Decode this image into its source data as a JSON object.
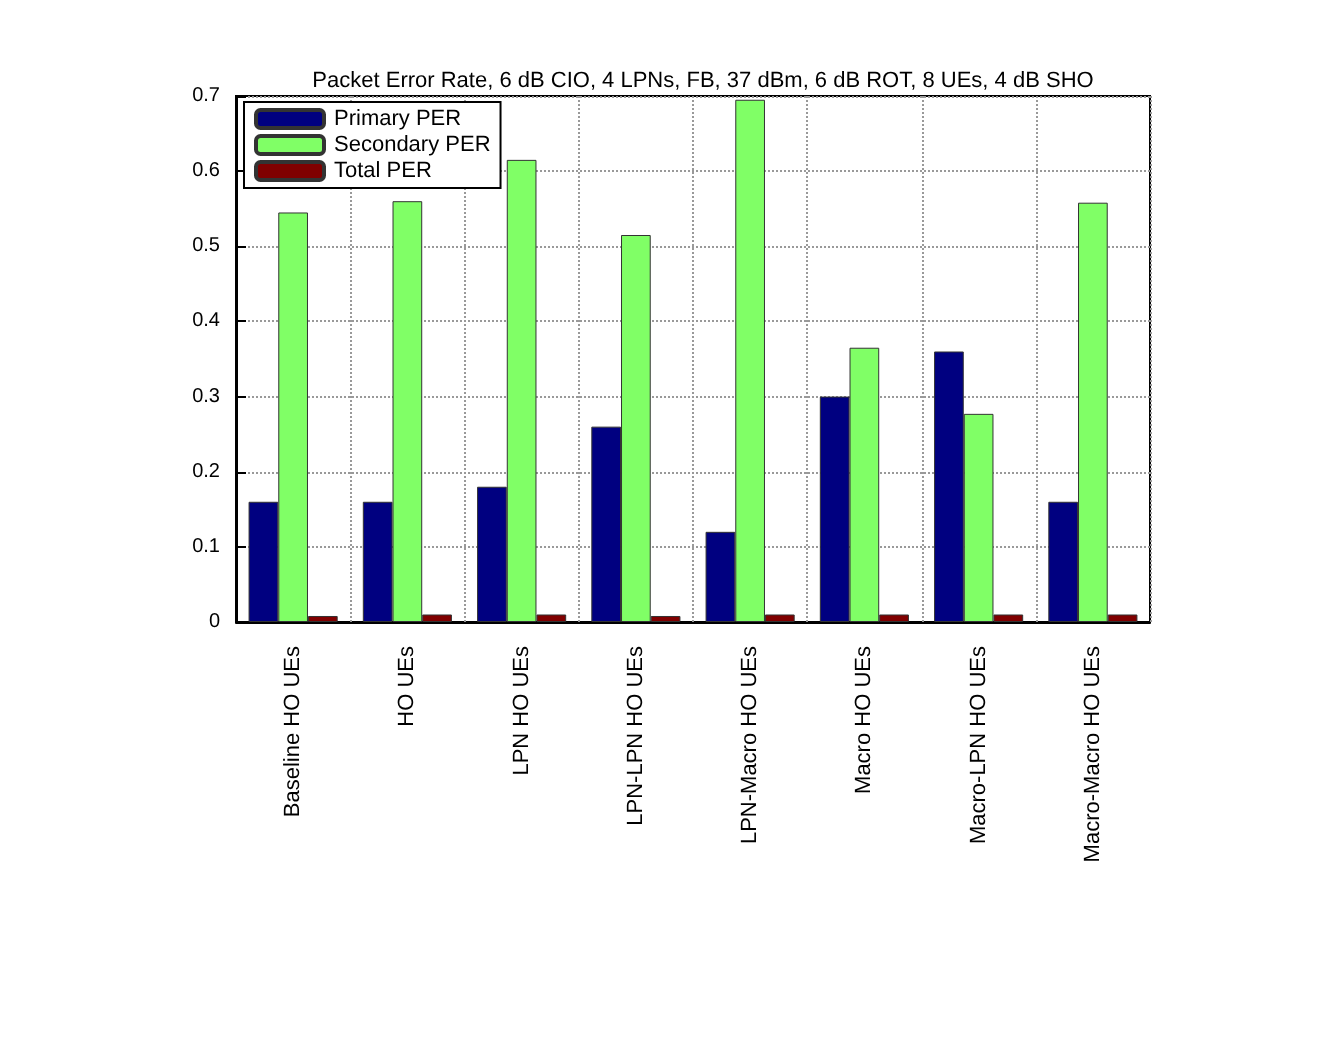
{
  "chart_data": {
    "type": "bar",
    "title": "Packet Error Rate, 6 dB CIO, 4 LPNs, FB, 37 dBm, 6 dB ROT, 8 UEs, 4 dB SHO",
    "categories": [
      "Baseline HO UEs",
      "HO UEs",
      "LPN HO UEs",
      "LPN-LPN HO UEs",
      "LPN-Macro HO UEs",
      "Macro HO UEs",
      "Macro-LPN HO UEs",
      "Macro-Macro HO UEs"
    ],
    "series": [
      {
        "name": "Primary PER",
        "color": "#000080",
        "values": [
          0.16,
          0.16,
          0.18,
          0.26,
          0.12,
          0.3,
          0.36,
          0.16
        ]
      },
      {
        "name": "Secondary PER",
        "color": "#80ff66",
        "values": [
          0.545,
          0.56,
          0.615,
          0.515,
          0.695,
          0.365,
          0.277,
          0.558
        ]
      },
      {
        "name": "Total PER",
        "color": "#800000",
        "values": [
          0.008,
          0.01,
          0.01,
          0.008,
          0.01,
          0.01,
          0.01,
          0.01
        ]
      }
    ],
    "ylim": [
      0,
      0.7
    ],
    "yticks": [
      0,
      0.1,
      0.2,
      0.3,
      0.4,
      0.5,
      0.6,
      0.7
    ],
    "grid": true,
    "legend": "top left"
  }
}
